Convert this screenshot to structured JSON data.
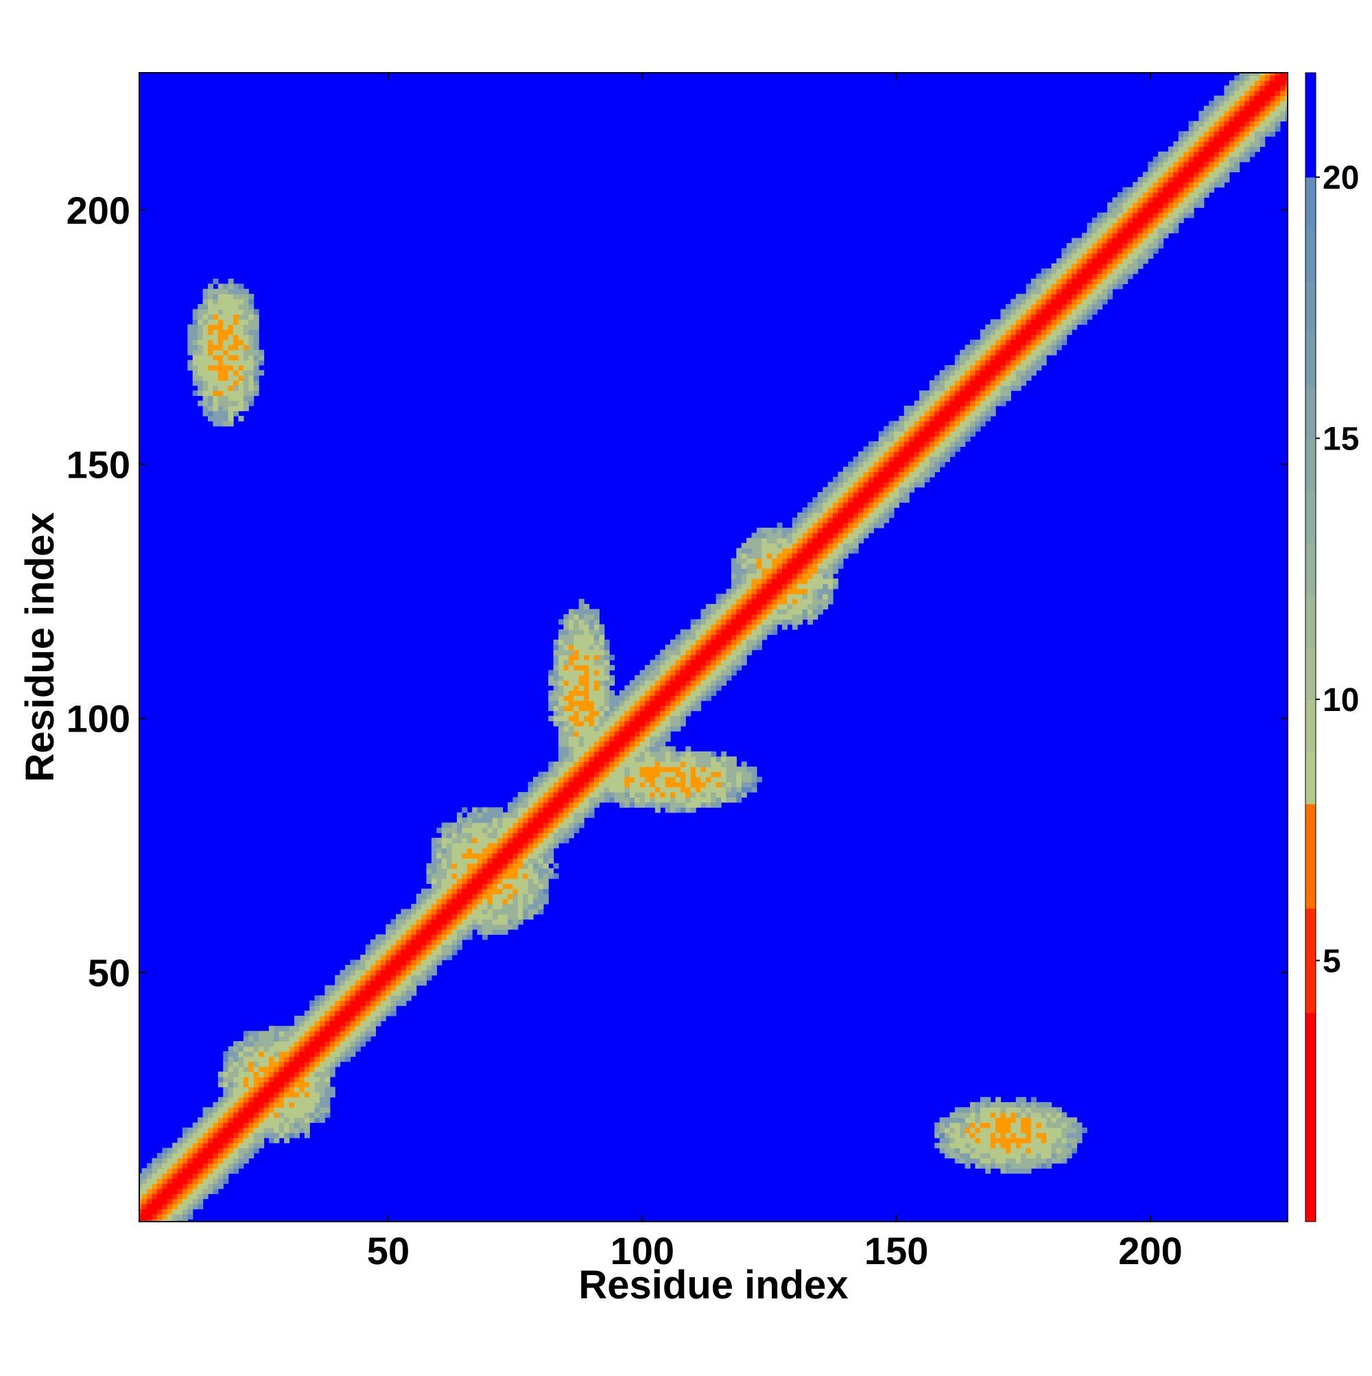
{
  "chart_data": {
    "type": "heatmap",
    "title": "",
    "xlabel": "Residue index",
    "ylabel": "Residue index",
    "xlim": [
      1,
      227
    ],
    "ylim": [
      1,
      227
    ],
    "xticks": [
      50,
      100,
      150,
      200
    ],
    "yticks": [
      50,
      100,
      150,
      200
    ],
    "colorbar": {
      "range": [
        0,
        22
      ],
      "ticks": [
        5,
        10,
        15,
        20
      ],
      "stops": [
        {
          "value": 0,
          "color": "#ff0000"
        },
        {
          "value": 4,
          "color": "#ff2a00"
        },
        {
          "value": 6,
          "color": "#ff7000"
        },
        {
          "value": 8,
          "color": "#ff9900"
        },
        {
          "value": 10,
          "color": "#b5c98a"
        },
        {
          "value": 14,
          "color": "#9bb29a"
        },
        {
          "value": 17,
          "color": "#7f9fae"
        },
        {
          "value": 19.5,
          "color": "#5f86bd"
        },
        {
          "value": 20,
          "color": "#0000ff"
        },
        {
          "value": 22,
          "color": "#0000ff"
        }
      ],
      "background_color": "#0000ff"
    },
    "diagonal_band": {
      "center": 0,
      "red_halfwidth": 2,
      "orange_halfwidth": 4,
      "outer_halfwidth": 9
    },
    "contact_clusters": [
      {
        "x": 18,
        "y": 172,
        "rx": 7,
        "ry": 14
      },
      {
        "x": 172,
        "y": 18,
        "rx": 14,
        "ry": 7
      },
      {
        "x": 88,
        "y": 106,
        "rx": 6,
        "ry": 16
      },
      {
        "x": 106,
        "y": 88,
        "rx": 16,
        "ry": 6
      },
      {
        "x": 70,
        "y": 70,
        "rx": 12,
        "ry": 12
      },
      {
        "x": 28,
        "y": 28,
        "rx": 11,
        "ry": 11
      },
      {
        "x": 128,
        "y": 128,
        "rx": 10,
        "ry": 10
      }
    ]
  }
}
